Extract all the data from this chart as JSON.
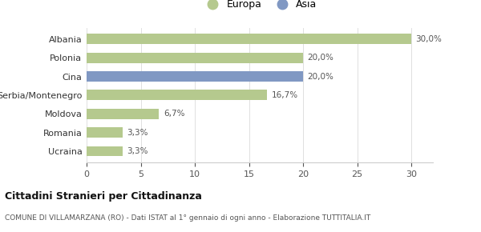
{
  "categories": [
    "Albania",
    "Polonia",
    "Cina",
    "Serbia/Montenegro",
    "Moldova",
    "Romania",
    "Ucraina"
  ],
  "values": [
    30.0,
    20.0,
    20.0,
    16.7,
    6.7,
    3.3,
    3.3
  ],
  "bar_colors": [
    "#b5c98e",
    "#b5c98e",
    "#8098c3",
    "#b5c98e",
    "#b5c98e",
    "#b5c98e",
    "#b5c98e"
  ],
  "labels": [
    "30,0%",
    "20,0%",
    "20,0%",
    "16,7%",
    "6,7%",
    "3,3%",
    "3,3%"
  ],
  "xlim": [
    0,
    32
  ],
  "xticks": [
    0,
    5,
    10,
    15,
    20,
    25,
    30
  ],
  "legend_europa_color": "#b5c98e",
  "legend_asia_color": "#8098c3",
  "title_main": "Cittadini Stranieri per Cittadinanza",
  "title_sub": "COMUNE DI VILLAMARZANA (RO) - Dati ISTAT al 1° gennaio di ogni anno - Elaborazione TUTTITALIA.IT",
  "background_color": "#ffffff",
  "bar_height": 0.55
}
